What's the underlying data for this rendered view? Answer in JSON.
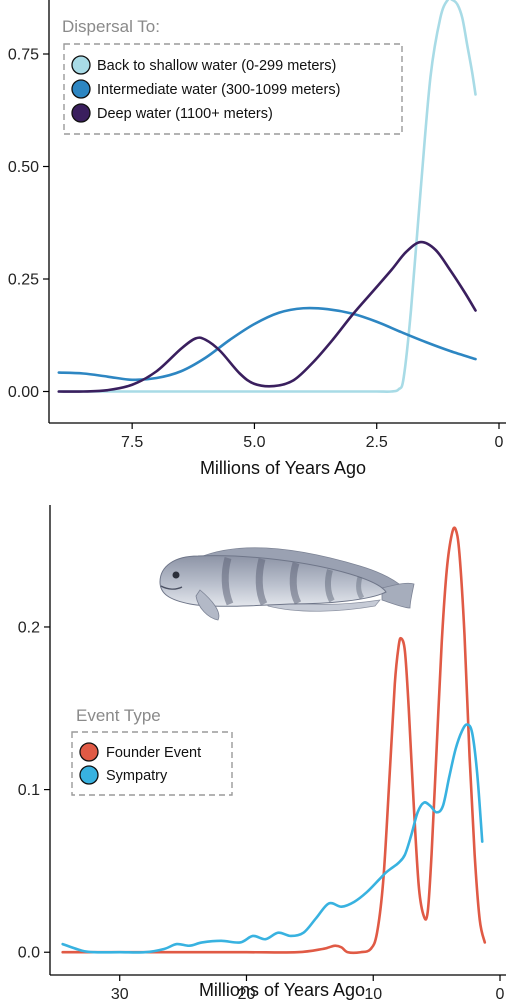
{
  "chart_data": [
    {
      "type": "line",
      "title": "",
      "xlabel": "Millions of Years Ago",
      "ylabel": "",
      "xlim": [
        9.2,
        0
      ],
      "ylim": [
        -0.07,
        0.87
      ],
      "x_reversed": true,
      "grid": false,
      "x_ticks": [
        7.5,
        5.0,
        2.5,
        0
      ],
      "x_tick_labels": [
        "7.5",
        "5.0",
        "2.5",
        "0"
      ],
      "y_ticks": [
        0,
        0.25,
        0.5,
        0.75
      ],
      "y_tick_labels": [
        "0.00",
        "0.25",
        "0.50",
        "0.75"
      ],
      "legend": {
        "title": "Dispersal To:",
        "position": "top-left",
        "entries": [
          "Back to shallow water (0-299 meters)",
          "Intermediate water (300-1099 meters)",
          "Deep water (1100+ meters)"
        ]
      },
      "series": [
        {
          "name": "Back to shallow water (0-299 meters)",
          "color": "#a8dbe6",
          "x": [
            9.0,
            8.0,
            7.0,
            6.0,
            5.0,
            4.0,
            3.0,
            2.5,
            2.2,
            2.05,
            1.95,
            1.8,
            1.6,
            1.4,
            1.2,
            1.05,
            0.95,
            0.85,
            0.75,
            0.65,
            0.55,
            0.48
          ],
          "y": [
            0.0,
            0.0,
            0.0,
            0.0,
            0.0,
            0.0,
            0.0,
            0.0,
            0.0,
            0.005,
            0.03,
            0.18,
            0.45,
            0.7,
            0.83,
            0.87,
            0.87,
            0.86,
            0.83,
            0.77,
            0.71,
            0.66
          ]
        },
        {
          "name": "Intermediate water (300-1099 meters)",
          "color": "#2d86c2",
          "x": [
            9.0,
            8.5,
            8.0,
            7.5,
            7.0,
            6.5,
            6.0,
            5.5,
            5.0,
            4.5,
            4.0,
            3.5,
            3.0,
            2.5,
            2.0,
            1.5,
            1.0,
            0.48
          ],
          "y": [
            0.042,
            0.04,
            0.033,
            0.026,
            0.03,
            0.045,
            0.075,
            0.115,
            0.15,
            0.175,
            0.185,
            0.183,
            0.173,
            0.155,
            0.132,
            0.11,
            0.09,
            0.072
          ]
        },
        {
          "name": "Deep water (1100+ meters)",
          "color": "#3a1f5e",
          "x": [
            9.0,
            8.5,
            8.0,
            7.5,
            7.0,
            6.5,
            6.2,
            6.0,
            5.7,
            5.3,
            5.0,
            4.6,
            4.2,
            3.8,
            3.4,
            3.0,
            2.6,
            2.2,
            1.9,
            1.6,
            1.3,
            1.0,
            0.7,
            0.48
          ],
          "y": [
            0.0,
            0.0,
            0.003,
            0.015,
            0.045,
            0.095,
            0.118,
            0.115,
            0.09,
            0.04,
            0.017,
            0.012,
            0.025,
            0.065,
            0.115,
            0.17,
            0.22,
            0.27,
            0.31,
            0.332,
            0.315,
            0.27,
            0.22,
            0.18
          ]
        }
      ]
    },
    {
      "type": "line",
      "title": "",
      "xlabel": "Millions of Years Ago",
      "ylabel": "",
      "xlim": [
        35.5,
        0
      ],
      "ylim": [
        -0.014,
        0.275
      ],
      "x_reversed": true,
      "grid": false,
      "x_ticks": [
        30,
        20,
        10,
        0
      ],
      "x_tick_labels": [
        "30",
        "20",
        "10",
        "0"
      ],
      "y_ticks": [
        0,
        0.1,
        0.2
      ],
      "y_tick_labels": [
        "0.0",
        "0.1",
        "0.2"
      ],
      "legend": {
        "title": "Event Type",
        "position": "middle-left",
        "entries": [
          "Founder Event",
          "Sympatry"
        ]
      },
      "series": [
        {
          "name": "Founder Event",
          "color": "#e05a45",
          "x": [
            34.5,
            30,
            25,
            20,
            16,
            14,
            13.5,
            13,
            12.5,
            12,
            11,
            10.2,
            9.7,
            9.2,
            8.7,
            8.3,
            8.0,
            7.8,
            7.5,
            7.2,
            6.8,
            6.4,
            6.0,
            5.7,
            5.4,
            5.0,
            4.6,
            4.2,
            3.8,
            3.5,
            3.2,
            2.8,
            2.4,
            2.0,
            1.6,
            1.2
          ],
          "y": [
            0.0,
            0.0,
            0.0,
            0.0,
            0.0,
            0.002,
            0.003,
            0.004,
            0.003,
            0.0,
            0.0,
            0.002,
            0.012,
            0.045,
            0.11,
            0.165,
            0.188,
            0.193,
            0.185,
            0.15,
            0.09,
            0.04,
            0.022,
            0.025,
            0.06,
            0.125,
            0.19,
            0.235,
            0.257,
            0.26,
            0.245,
            0.195,
            0.12,
            0.06,
            0.02,
            0.006
          ]
        },
        {
          "name": "Sympatry",
          "color": "#38b2e0",
          "x": [
            34.5,
            33,
            32,
            30,
            28,
            26.5,
            25.5,
            24.5,
            23.5,
            22,
            20.5,
            19.5,
            18.5,
            17.5,
            16.5,
            15.5,
            14.5,
            13.5,
            12.5,
            11.5,
            10.5,
            9.5,
            9.0,
            8.5,
            8.0,
            7.5,
            7.0,
            6.5,
            6.0,
            5.5,
            5.0,
            4.5,
            4.0,
            3.5,
            3.0,
            2.6,
            2.2,
            1.8,
            1.4
          ],
          "y": [
            0.005,
            0.001,
            0.0,
            0.0,
            0.0,
            0.002,
            0.005,
            0.004,
            0.006,
            0.007,
            0.006,
            0.01,
            0.008,
            0.012,
            0.01,
            0.012,
            0.021,
            0.03,
            0.028,
            0.031,
            0.037,
            0.045,
            0.049,
            0.052,
            0.055,
            0.06,
            0.072,
            0.086,
            0.092,
            0.09,
            0.086,
            0.09,
            0.108,
            0.125,
            0.136,
            0.14,
            0.135,
            0.11,
            0.068
          ]
        }
      ]
    }
  ]
}
